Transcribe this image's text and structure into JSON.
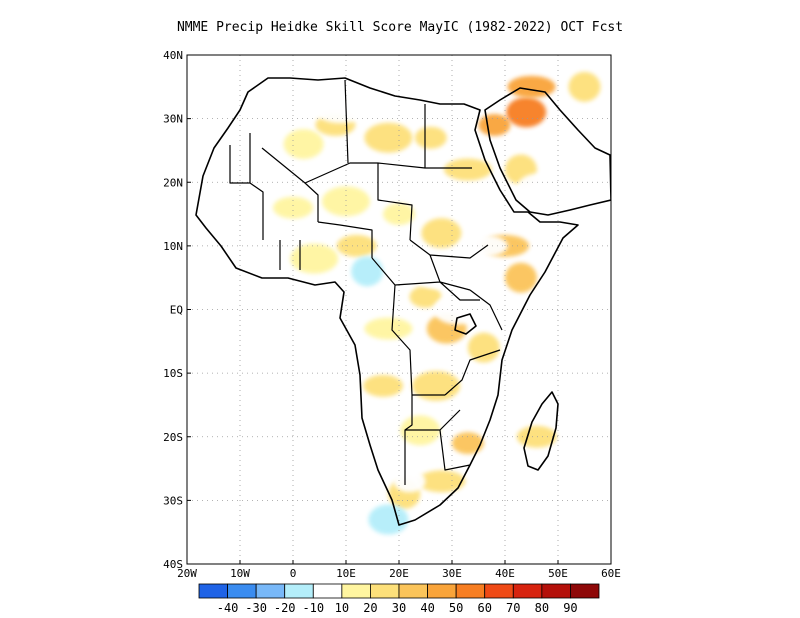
{
  "title": "NMME Precip Heidke Skill Score MayIC (1982-2022) OCT Fcst",
  "map": {
    "region": "Africa",
    "lon_range": [
      -20,
      60
    ],
    "lat_range": [
      -40,
      40
    ],
    "grid": true,
    "x_ticks": [
      "20W",
      "10W",
      "0",
      "10E",
      "20E",
      "30E",
      "40E",
      "50E",
      "60E"
    ],
    "y_ticks": [
      "40N",
      "30N",
      "20N",
      "10N",
      "EQ",
      "10S",
      "20S",
      "30S",
      "40S"
    ],
    "blobs": [
      {
        "lon": 38,
        "lat": 29,
        "value": 40
      },
      {
        "lon": 44,
        "lat": 31,
        "value": 50
      },
      {
        "lon": 45,
        "lat": 35,
        "value": 40
      },
      {
        "lon": 55,
        "lat": 35,
        "value": 20
      },
      {
        "lon": 8,
        "lat": 29,
        "value": 20
      },
      {
        "lon": 18,
        "lat": 27,
        "value": 20
      },
      {
        "lon": 26,
        "lat": 27,
        "value": 20
      },
      {
        "lon": 2,
        "lat": 26,
        "value": 10
      },
      {
        "lon": 33,
        "lat": 22,
        "value": 20
      },
      {
        "lon": 43,
        "lat": 22,
        "value": 20
      },
      {
        "lon": 0,
        "lat": 16,
        "value": 10
      },
      {
        "lon": 10,
        "lat": 17,
        "value": 10
      },
      {
        "lon": 20,
        "lat": 15,
        "value": 10
      },
      {
        "lon": 28,
        "lat": 12,
        "value": 20
      },
      {
        "lon": 40,
        "lat": 10,
        "value": 30
      },
      {
        "lon": 43,
        "lat": 5,
        "value": 30
      },
      {
        "lon": 12,
        "lat": 10,
        "value": 20
      },
      {
        "lon": 4,
        "lat": 8,
        "value": 10
      },
      {
        "lon": 25,
        "lat": 2,
        "value": 20
      },
      {
        "lon": 29,
        "lat": -3,
        "value": 30
      },
      {
        "lon": 18,
        "lat": -3,
        "value": 10
      },
      {
        "lon": 36,
        "lat": -6,
        "value": 20
      },
      {
        "lon": 17,
        "lat": -12,
        "value": 20
      },
      {
        "lon": 27,
        "lat": -12,
        "value": 20
      },
      {
        "lon": 33,
        "lat": -21,
        "value": 30
      },
      {
        "lon": 24,
        "lat": -19,
        "value": 10
      },
      {
        "lon": 28,
        "lat": -27,
        "value": 20
      },
      {
        "lon": 21,
        "lat": -29,
        "value": 20
      },
      {
        "lon": 46,
        "lat": -20,
        "value": 20
      },
      {
        "lon": -10,
        "lat": 25,
        "value": -10
      },
      {
        "lon": 15,
        "lat": 21,
        "value": -10
      },
      {
        "lon": 46,
        "lat": 19,
        "value": -10
      },
      {
        "lon": 36,
        "lat": 10,
        "value": -10
      },
      {
        "lon": 14,
        "lat": 6,
        "value": -20
      },
      {
        "lon": 27,
        "lat": 5,
        "value": -10
      },
      {
        "lon": 31,
        "lat": 0,
        "value": -10
      },
      {
        "lon": 22,
        "lat": -27,
        "value": -10
      },
      {
        "lon": 18,
        "lat": -33,
        "value": -20
      },
      {
        "lon": 9,
        "lat": 31,
        "value": -10
      }
    ]
  },
  "colorbar": {
    "labels": [
      "-40",
      "-30",
      "-20",
      "-10",
      "10",
      "20",
      "30",
      "40",
      "50",
      "60",
      "70",
      "80",
      "90"
    ],
    "colors": [
      "#1f63e6",
      "#3a8cf0",
      "#78b8f8",
      "#b4eefa",
      "#ffffff",
      "#fff5a0",
      "#fde07a",
      "#fbc45a",
      "#f9a43a",
      "#f77e22",
      "#ef4a16",
      "#d7230f",
      "#b4100a",
      "#8e0808"
    ]
  }
}
